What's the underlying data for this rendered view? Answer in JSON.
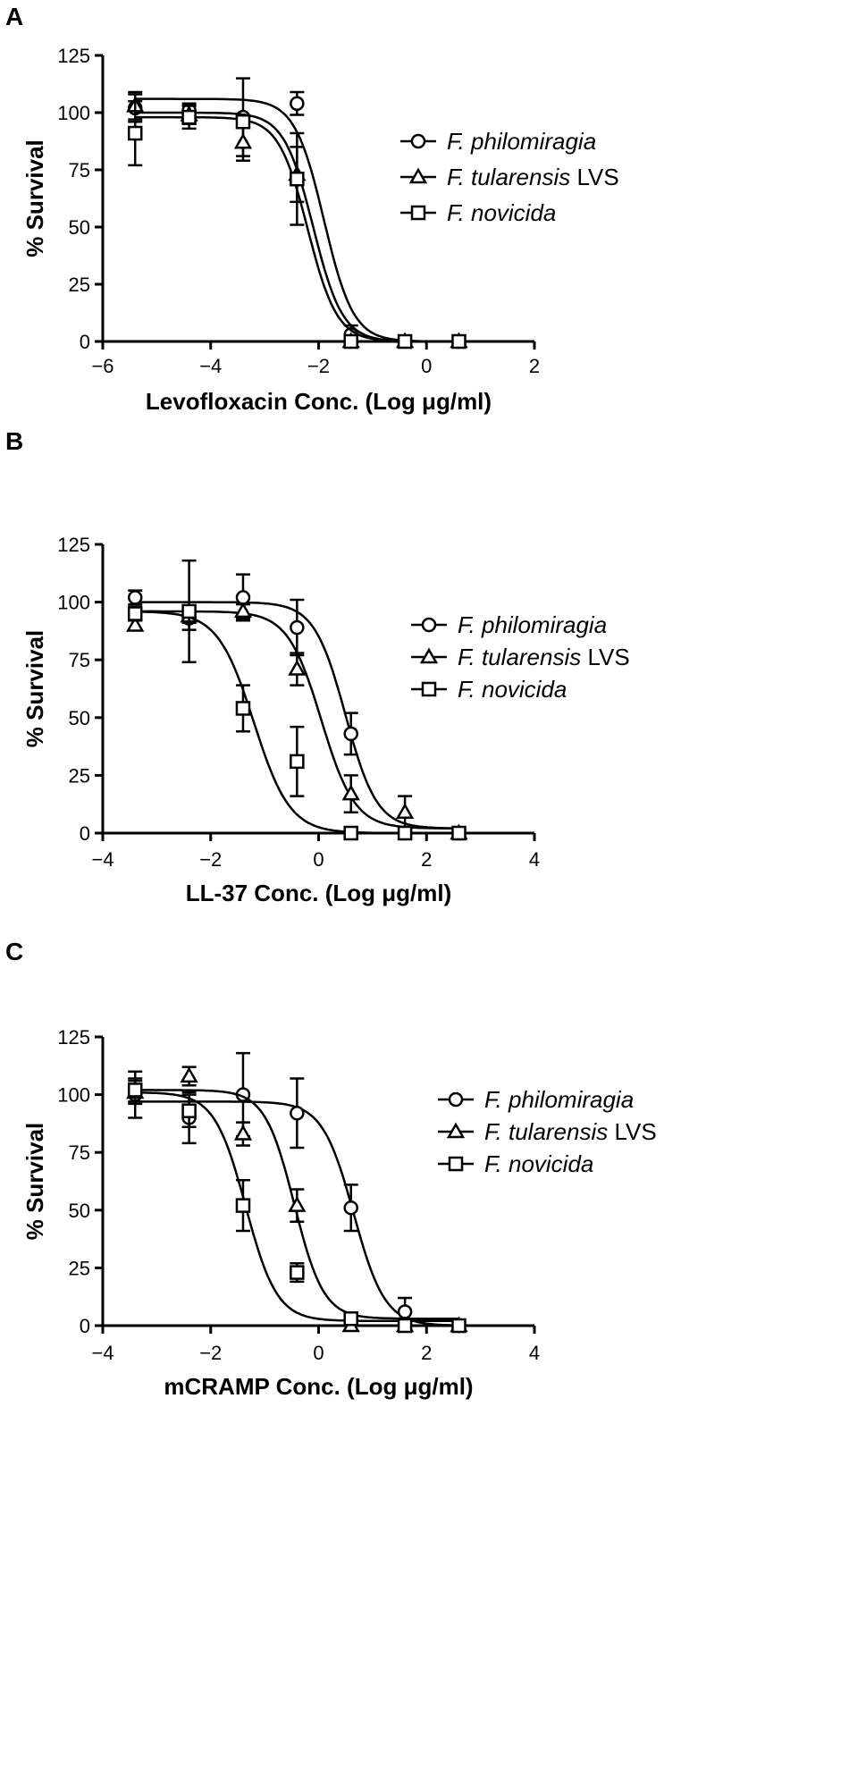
{
  "chart_data": [
    {
      "panel": "A",
      "type": "scatter",
      "xlabel": "Levofloxacin Conc. (Log μg/ml)",
      "ylabel": "% Survival",
      "xlim": [
        -6,
        2
      ],
      "ylim": [
        0,
        125
      ],
      "xticks": [
        -6,
        -4,
        -2,
        0,
        2
      ],
      "yticks": [
        0,
        25,
        50,
        75,
        100,
        125
      ],
      "grid": false,
      "legend_position": "right",
      "series": [
        {
          "name": "F. philomiragia",
          "name_italic": "F. philomiragia",
          "name_suffix": "",
          "marker": "circle",
          "x": [
            -5.4,
            -4.4,
            -3.4,
            -2.4,
            -1.4,
            -0.4,
            0.6
          ],
          "y": [
            102,
            101,
            98,
            104,
            3,
            0,
            0
          ],
          "err": [
            6,
            3,
            17,
            5,
            4,
            0,
            0
          ],
          "curve": {
            "top": 106,
            "bottom": 0,
            "logIC50": -1.9,
            "hill": 1.6
          }
        },
        {
          "name": "F. tularensis LVS",
          "name_italic": "F. tularensis",
          "name_suffix": " LVS",
          "marker": "triangle",
          "x": [
            -5.4,
            -4.4,
            -3.4,
            -2.4,
            -1.4,
            -0.4,
            0.6
          ],
          "y": [
            103,
            99,
            87,
            73,
            0,
            0,
            0
          ],
          "err": [
            6,
            4,
            8,
            12,
            2,
            0,
            0
          ],
          "curve": {
            "top": 100,
            "bottom": 0,
            "logIC50": -2.1,
            "hill": 1.6
          }
        },
        {
          "name": "F. novicida",
          "name_italic": "F. novicida",
          "name_suffix": "",
          "marker": "square",
          "x": [
            -5.4,
            -4.4,
            -3.4,
            -2.4,
            -1.4,
            -0.4,
            0.6
          ],
          "y": [
            91,
            98,
            96,
            71,
            0,
            0,
            0
          ],
          "err": [
            14,
            5,
            2,
            20,
            1,
            0,
            0
          ],
          "curve": {
            "top": 98,
            "bottom": 0,
            "logIC50": -2.2,
            "hill": 1.6
          }
        }
      ]
    },
    {
      "panel": "B",
      "type": "scatter",
      "xlabel": "LL-37 Conc. (Log μg/ml)",
      "ylabel": "% Survival",
      "xlim": [
        -4,
        4
      ],
      "ylim": [
        0,
        125
      ],
      "xticks": [
        -4,
        -2,
        0,
        2,
        4
      ],
      "yticks": [
        0,
        25,
        50,
        75,
        100,
        125
      ],
      "grid": false,
      "legend_position": "right",
      "series": [
        {
          "name": "F. philomiragia",
          "name_italic": "F. philomiragia",
          "name_suffix": "",
          "marker": "circle",
          "x": [
            -3.4,
            -2.4,
            -1.4,
            -0.4,
            0.6,
            1.6,
            2.6
          ],
          "y": [
            102,
            93,
            102,
            89,
            43,
            0,
            0
          ],
          "err": [
            3,
            5,
            10,
            12,
            9,
            0,
            0
          ],
          "curve": {
            "top": 100,
            "bottom": 2,
            "logIC50": 0.5,
            "hill": 1.5
          }
        },
        {
          "name": "F. tularensis LVS",
          "name_italic": "F. tularensis",
          "name_suffix": " LVS",
          "marker": "triangle",
          "x": [
            -3.4,
            -2.4,
            -1.4,
            -0.4,
            0.6,
            1.6,
            2.6
          ],
          "y": [
            90,
            94,
            96,
            71,
            17,
            9,
            0
          ],
          "err": [
            2,
            3,
            3,
            7,
            8,
            7,
            0
          ],
          "curve": {
            "top": 96,
            "bottom": 2,
            "logIC50": 0.05,
            "hill": 1.4
          }
        },
        {
          "name": "F. novicida",
          "name_italic": "F. novicida",
          "name_suffix": "",
          "marker": "square",
          "x": [
            -3.4,
            -2.4,
            -1.4,
            -0.4,
            0.6,
            1.6,
            2.6
          ],
          "y": [
            95,
            96,
            54,
            31,
            0,
            0,
            0
          ],
          "err": [
            3,
            22,
            10,
            15,
            0,
            0,
            0
          ],
          "curve": {
            "top": 96,
            "bottom": 0,
            "logIC50": -1.2,
            "hill": 1.3
          }
        }
      ]
    },
    {
      "panel": "C",
      "type": "scatter",
      "xlabel": "mCRAMP Conc. (Log μg/ml)",
      "ylabel": "% Survival",
      "xlim": [
        -4,
        4
      ],
      "ylim": [
        0,
        125
      ],
      "xticks": [
        -4,
        -2,
        0,
        2,
        4
      ],
      "yticks": [
        0,
        25,
        50,
        75,
        100,
        125
      ],
      "grid": false,
      "legend_position": "right",
      "series": [
        {
          "name": "F. philomiragia",
          "name_italic": "F. philomiragia",
          "name_suffix": "",
          "marker": "circle",
          "x": [
            -3.4,
            -2.4,
            -1.4,
            -0.4,
            0.6,
            1.6,
            2.6
          ],
          "y": [
            100,
            90,
            100,
            92,
            51,
            6,
            0
          ],
          "err": [
            10,
            11,
            18,
            15,
            10,
            6,
            0
          ],
          "curve": {
            "top": 97,
            "bottom": 0,
            "logIC50": 0.65,
            "hill": 1.5
          }
        },
        {
          "name": "F. tularensis LVS",
          "name_italic": "F. tularensis",
          "name_suffix": " LVS",
          "marker": "triangle",
          "x": [
            -3.4,
            -2.4,
            -1.4,
            -0.4,
            0.6,
            1.6,
            2.6
          ],
          "y": [
            101,
            108,
            83,
            52,
            0,
            0,
            0
          ],
          "err": [
            5,
            4,
            5,
            7,
            2,
            0,
            0
          ],
          "curve": {
            "top": 102,
            "bottom": 3,
            "logIC50": -0.45,
            "hill": 1.6
          }
        },
        {
          "name": "F. novicida",
          "name_italic": "F. novicida",
          "name_suffix": "",
          "marker": "square",
          "x": [
            -3.4,
            -2.4,
            -1.4,
            -0.4,
            0.6,
            1.6,
            2.6
          ],
          "y": [
            102,
            93,
            52,
            23,
            3,
            0,
            0
          ],
          "err": [
            5,
            7,
            11,
            4,
            2,
            0,
            0
          ],
          "curve": {
            "top": 101,
            "bottom": 2,
            "logIC50": -1.35,
            "hill": 1.5
          }
        }
      ]
    }
  ]
}
